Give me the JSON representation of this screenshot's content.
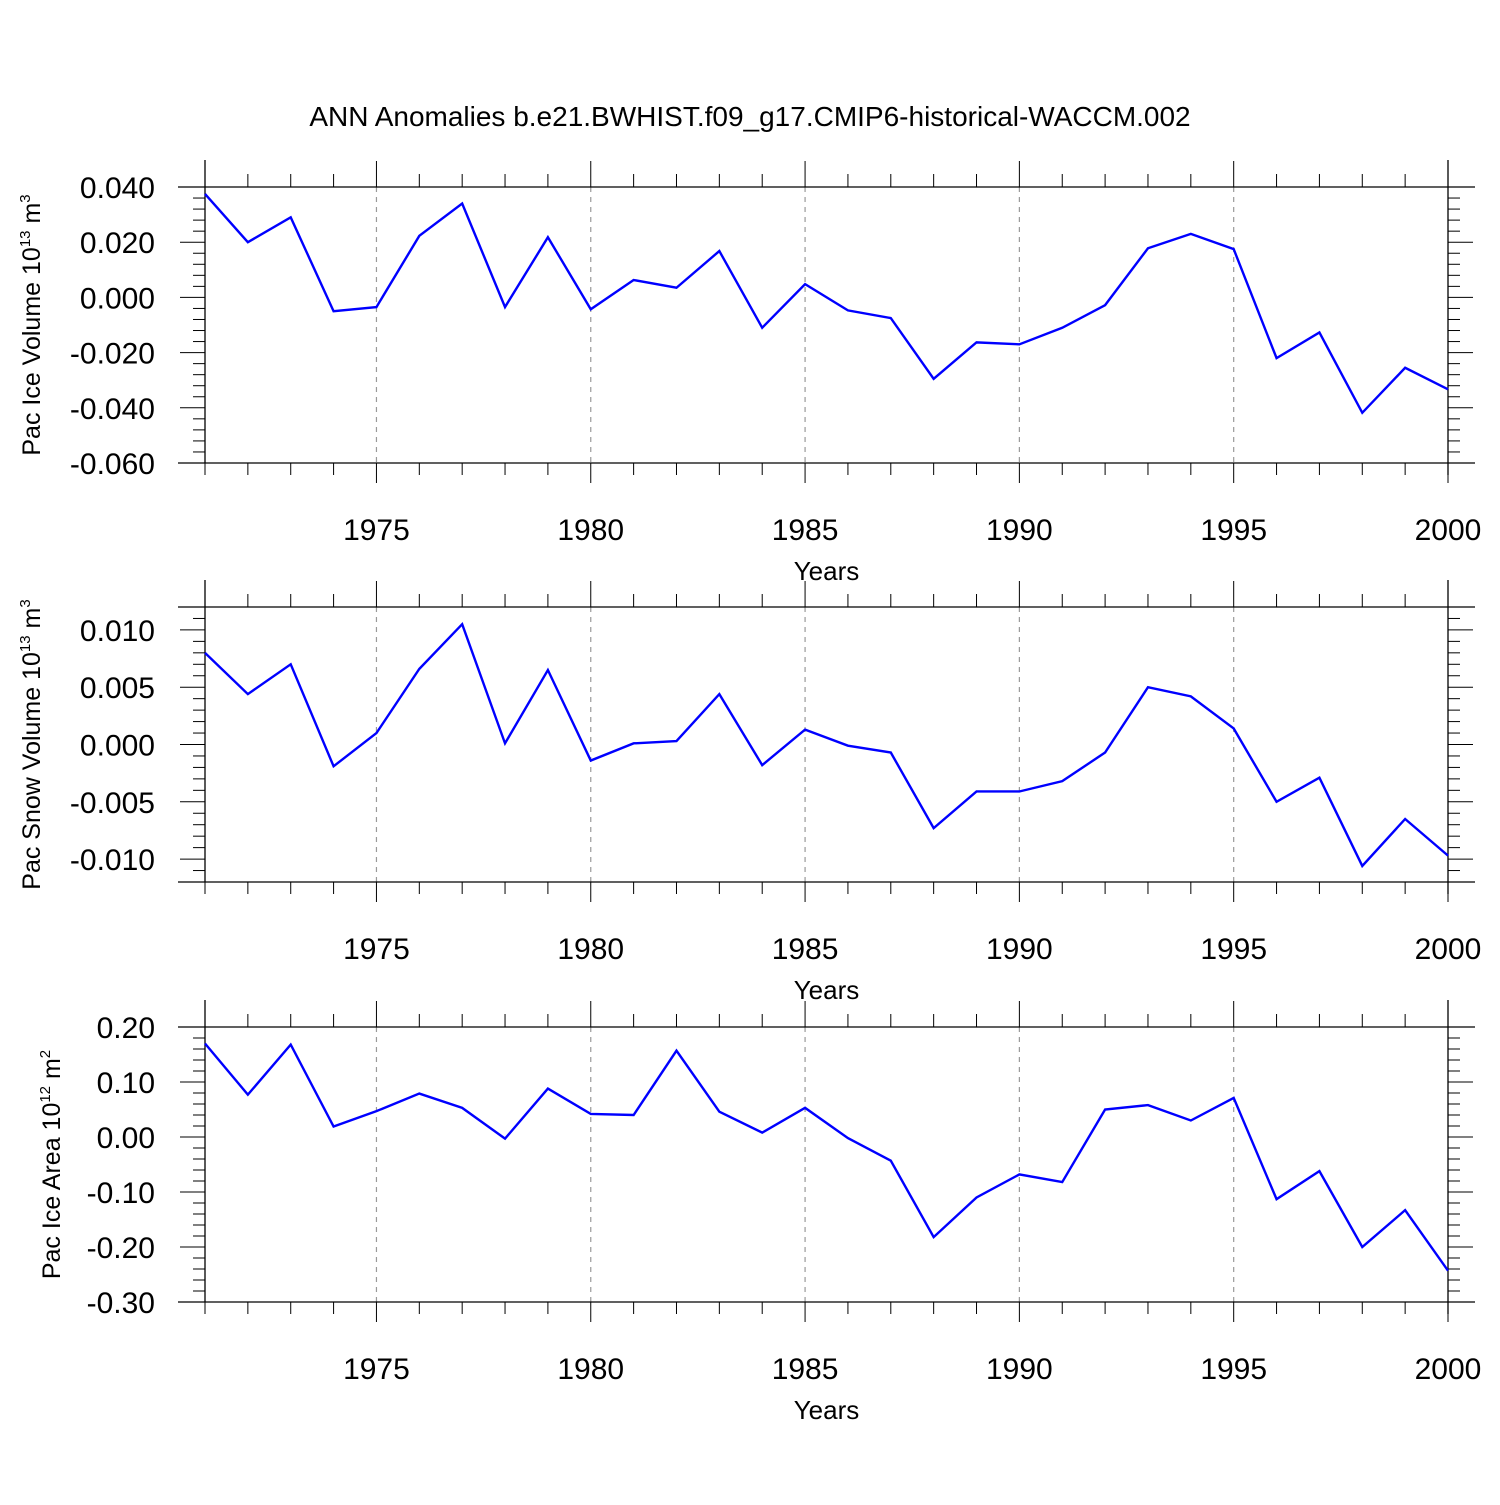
{
  "figure": {
    "title": "ANN Anomalies b.e21.BWHIST.f09_g17.CMIP6-historical-WACCM.002",
    "line_color": "#0000ff",
    "axis_color": "#000000",
    "grid_color": "#999999"
  },
  "chart_data": [
    {
      "type": "line",
      "title": "ANN Anomalies b.e21.BWHIST.f09_g17.CMIP6-historical-WACCM.002",
      "xlabel": "Years",
      "ylabel": {
        "base": "Pac Ice Volume 10",
        "sup1": "13",
        "mid": " m",
        "sup2": "3"
      },
      "xlim": [
        1971,
        2000
      ],
      "ylim": [
        -0.06,
        0.04
      ],
      "xticks": [
        1975,
        1980,
        1985,
        1990,
        1995,
        2000
      ],
      "xtick_labels": [
        "1975",
        "1980",
        "1985",
        "1990",
        "1995",
        "2000"
      ],
      "yticks": [
        0.04,
        0.02,
        0.0,
        -0.02,
        -0.04,
        -0.06
      ],
      "ytick_labels": [
        "0.040",
        "0.020",
        "0.000",
        "-0.020",
        "-0.040",
        "-0.060"
      ],
      "grid": "vertical dashed at major x ticks",
      "x": [
        1971,
        1972,
        1973,
        1974,
        1975,
        1976,
        1977,
        1978,
        1979,
        1980,
        1981,
        1982,
        1983,
        1984,
        1985,
        1986,
        1987,
        1988,
        1989,
        1990,
        1991,
        1992,
        1993,
        1994,
        1995,
        1996,
        1997,
        1998,
        1999,
        2000
      ],
      "series": [
        {
          "values": [
            0.0375,
            0.02,
            0.029,
            -0.005,
            -0.0035,
            0.0223,
            0.034,
            -0.0035,
            0.0218,
            -0.0043,
            0.0063,
            0.0035,
            0.0168,
            -0.011,
            0.0048,
            -0.0047,
            -0.0075,
            -0.0295,
            -0.0163,
            -0.017,
            -0.011,
            -0.0028,
            0.0178,
            0.023,
            0.0175,
            -0.022,
            -0.0127,
            -0.0418,
            -0.0255,
            -0.0333
          ]
        }
      ]
    },
    {
      "type": "line",
      "xlabel": "Years",
      "ylabel": {
        "base": "Pac Snow Volume 10",
        "sup1": "13",
        "mid": " m",
        "sup2": "3"
      },
      "xlim": [
        1971,
        2000
      ],
      "ylim": [
        -0.012,
        0.012
      ],
      "xticks": [
        1975,
        1980,
        1985,
        1990,
        1995,
        2000
      ],
      "xtick_labels": [
        "1975",
        "1980",
        "1985",
        "1990",
        "1995",
        "2000"
      ],
      "yticks": [
        0.01,
        0.005,
        0.0,
        -0.005,
        -0.01
      ],
      "ytick_labels": [
        "0.010",
        "0.005",
        "0.000",
        "-0.005",
        "-0.010"
      ],
      "grid": "vertical dashed at major x ticks",
      "x": [
        1971,
        1972,
        1973,
        1974,
        1975,
        1976,
        1977,
        1978,
        1979,
        1980,
        1981,
        1982,
        1983,
        1984,
        1985,
        1986,
        1987,
        1988,
        1989,
        1990,
        1991,
        1992,
        1993,
        1994,
        1995,
        1996,
        1997,
        1998,
        1999,
        2000
      ],
      "series": [
        {
          "values": [
            0.008,
            0.0044,
            0.007,
            -0.0019,
            0.001,
            0.0066,
            0.0105,
            0.0001,
            0.0065,
            -0.0014,
            0.0001,
            0.0003,
            0.0044,
            -0.0018,
            0.0013,
            -0.0001,
            -0.0007,
            -0.0073,
            -0.0041,
            -0.0041,
            -0.0032,
            -0.0007,
            0.005,
            0.0042,
            0.0014,
            -0.005,
            -0.0029,
            -0.0106,
            -0.0065,
            -0.0097
          ]
        }
      ]
    },
    {
      "type": "line",
      "xlabel": "Years",
      "ylabel": {
        "base": "Pac Ice Area 10",
        "sup1": "12",
        "mid": " m",
        "sup2": "2"
      },
      "xlim": [
        1971,
        2000
      ],
      "ylim": [
        -0.3,
        0.2
      ],
      "xticks": [
        1975,
        1980,
        1985,
        1990,
        1995,
        2000
      ],
      "xtick_labels": [
        "1975",
        "1980",
        "1985",
        "1990",
        "1995",
        "2000"
      ],
      "yticks": [
        0.2,
        0.1,
        0.0,
        -0.1,
        -0.2,
        -0.3
      ],
      "ytick_labels": [
        "0.20",
        "0.10",
        "0.00",
        "-0.10",
        "-0.20",
        "-0.30"
      ],
      "grid": "vertical dashed at major x ticks",
      "x": [
        1971,
        1972,
        1973,
        1974,
        1975,
        1976,
        1977,
        1978,
        1979,
        1980,
        1981,
        1982,
        1983,
        1984,
        1985,
        1986,
        1987,
        1988,
        1989,
        1990,
        1991,
        1992,
        1993,
        1994,
        1995,
        1996,
        1997,
        1998,
        1999,
        2000
      ],
      "series": [
        {
          "values": [
            0.17,
            0.077,
            0.168,
            0.019,
            0.047,
            0.079,
            0.053,
            -0.003,
            0.088,
            0.042,
            0.04,
            0.157,
            0.046,
            0.008,
            0.053,
            -0.002,
            -0.043,
            -0.182,
            -0.11,
            -0.068,
            -0.082,
            0.05,
            0.058,
            0.03,
            0.071,
            -0.113,
            -0.062,
            -0.2,
            -0.133,
            -0.243
          ]
        }
      ]
    }
  ]
}
